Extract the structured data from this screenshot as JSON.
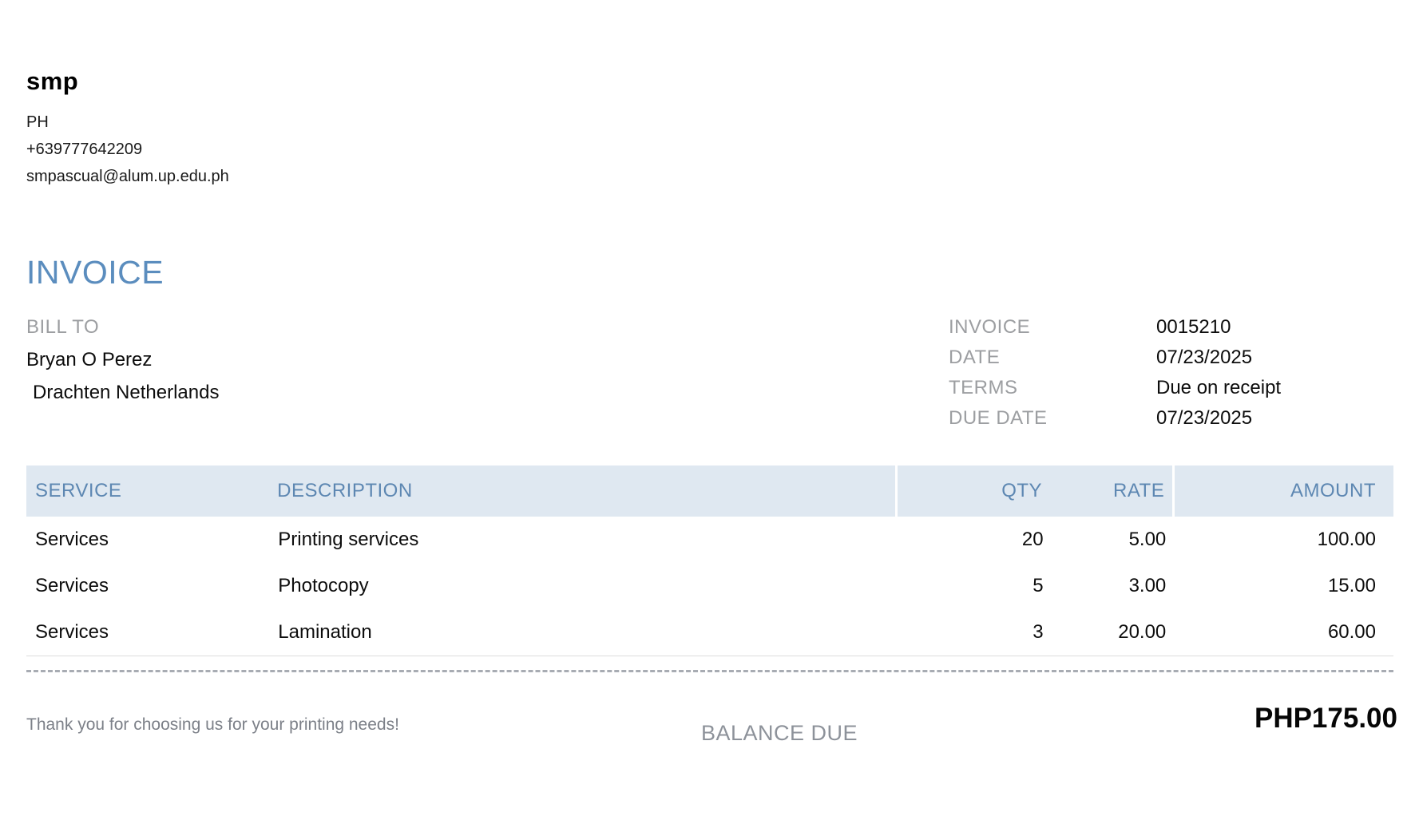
{
  "company": {
    "name": "smp",
    "country": "PH",
    "phone": "+639777642209",
    "email": "smpascual@alum.up.edu.ph"
  },
  "title": "INVOICE",
  "bill_to": {
    "label": "BILL TO",
    "name": "Bryan O Perez",
    "address": "Drachten Netherlands"
  },
  "meta": {
    "rows": [
      {
        "label": "INVOICE",
        "value": "0015210"
      },
      {
        "label": "DATE",
        "value": "07/23/2025"
      },
      {
        "label": "TERMS",
        "value": "Due on receipt"
      },
      {
        "label": "DUE DATE",
        "value": "07/23/2025"
      }
    ]
  },
  "table": {
    "columns": {
      "service": "SERVICE",
      "description": "DESCRIPTION",
      "qty": "QTY",
      "rate": "RATE",
      "amount": "AMOUNT"
    },
    "rows": [
      {
        "service": "Services",
        "description": "Printing services",
        "qty": "20",
        "rate": "5.00",
        "amount": "100.00"
      },
      {
        "service": "Services",
        "description": "Photocopy",
        "qty": "5",
        "rate": "3.00",
        "amount": "15.00"
      },
      {
        "service": "Services",
        "description": "Lamination",
        "qty": "3",
        "rate": "20.00",
        "amount": "60.00"
      }
    ]
  },
  "footer": {
    "thanks": "Thank you for choosing us for your printing needs!",
    "balance_label": "BALANCE DUE",
    "balance_value": "PHP175.00"
  },
  "colors": {
    "accent_blue": "#5b8dbe",
    "table_header_bg": "#dfe8f1",
    "table_header_text": "#5d87b2",
    "label_gray": "#9c9ea1"
  }
}
